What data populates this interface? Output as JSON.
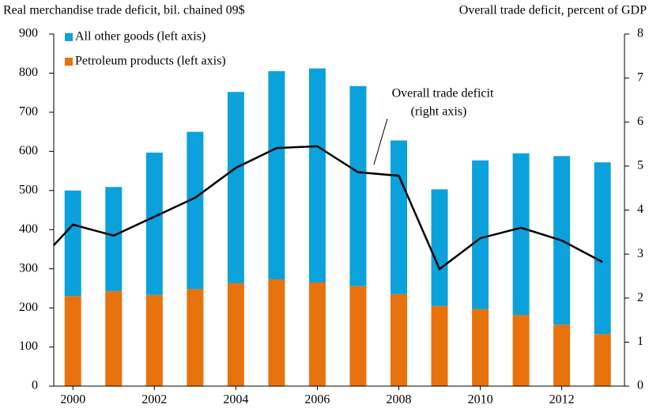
{
  "chart_data": {
    "type": "bar",
    "stacked": true,
    "y_axis_label": "Real merchandise trade deficit, bil. chained 09$",
    "y2_axis_label": "Overall trade deficit, percent of GDP",
    "annotation": [
      "Overall trade deficit",
      "(right axis)"
    ],
    "x": [
      2000,
      2001,
      2002,
      2003,
      2004,
      2005,
      2006,
      2007,
      2008,
      2009,
      2010,
      2011,
      2012,
      2013
    ],
    "xlim": [
      1999.53,
      2013.54
    ],
    "xticks": [
      2000,
      2002,
      2004,
      2006,
      2008,
      2010,
      2012
    ],
    "ylim": [
      0,
      900
    ],
    "yticks": [
      0,
      100,
      200,
      300,
      400,
      500,
      600,
      700,
      800,
      900
    ],
    "y2lim": [
      0,
      8
    ],
    "y2ticks": [
      0,
      1,
      2,
      3,
      4,
      5,
      6,
      7,
      8
    ],
    "series": [
      {
        "name": "Petroleum products (left axis)",
        "color": "#e8720c",
        "values": [
          230,
          243,
          233,
          248,
          263,
          273,
          265,
          256,
          235,
          205,
          197,
          182,
          157,
          133
        ]
      },
      {
        "name": "All other goods (left axis)",
        "color": "#0ba1dc",
        "values": [
          270,
          266,
          364,
          402,
          489,
          532,
          547,
          511,
          393,
          298,
          380,
          413,
          431,
          439
        ]
      },
      {
        "type": "line",
        "axis": "y2",
        "color": "#000000",
        "x": [
          1999.53,
          2000,
          2001,
          2002,
          2003,
          2004,
          2005,
          2006,
          2007,
          2008,
          2009,
          2010,
          2011,
          2012,
          2013
        ],
        "values": [
          3.2,
          3.67,
          3.42,
          3.85,
          4.28,
          4.96,
          5.41,
          5.45,
          4.86,
          4.78,
          2.66,
          3.36,
          3.6,
          3.31,
          2.82
        ]
      }
    ]
  }
}
